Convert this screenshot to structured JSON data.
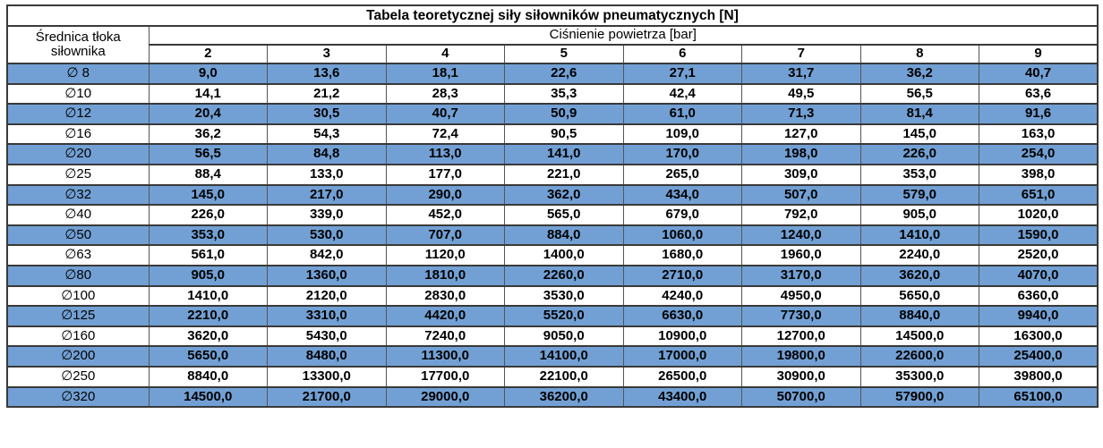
{
  "table": {
    "title": "Tabela teoretycznej siły siłowników pneumatycznych [N]",
    "row_header_lines": [
      "Średnica tłoka",
      "siłownika"
    ],
    "col_group_header": "Ciśnienie powietrza [bar]",
    "pressures": [
      "2",
      "3",
      "4",
      "5",
      "6",
      "7",
      "8",
      "9"
    ],
    "rows": [
      {
        "diameter": "∅ 8",
        "values": [
          "9,0",
          "13,6",
          "18,1",
          "22,6",
          "27,1",
          "31,7",
          "36,2",
          "40,7"
        ]
      },
      {
        "diameter": "∅10",
        "values": [
          "14,1",
          "21,2",
          "28,3",
          "35,3",
          "42,4",
          "49,5",
          "56,5",
          "63,6"
        ]
      },
      {
        "diameter": "∅12",
        "values": [
          "20,4",
          "30,5",
          "40,7",
          "50,9",
          "61,0",
          "71,3",
          "81,4",
          "91,6"
        ]
      },
      {
        "diameter": "∅16",
        "values": [
          "36,2",
          "54,3",
          "72,4",
          "90,5",
          "109,0",
          "127,0",
          "145,0",
          "163,0"
        ]
      },
      {
        "diameter": "∅20",
        "values": [
          "56,5",
          "84,8",
          "113,0",
          "141,0",
          "170,0",
          "198,0",
          "226,0",
          "254,0"
        ]
      },
      {
        "diameter": "∅25",
        "values": [
          "88,4",
          "133,0",
          "177,0",
          "221,0",
          "265,0",
          "309,0",
          "353,0",
          "398,0"
        ]
      },
      {
        "diameter": "∅32",
        "values": [
          "145,0",
          "217,0",
          "290,0",
          "362,0",
          "434,0",
          "507,0",
          "579,0",
          "651,0"
        ]
      },
      {
        "diameter": "∅40",
        "values": [
          "226,0",
          "339,0",
          "452,0",
          "565,0",
          "679,0",
          "792,0",
          "905,0",
          "1020,0"
        ]
      },
      {
        "diameter": "∅50",
        "values": [
          "353,0",
          "530,0",
          "707,0",
          "884,0",
          "1060,0",
          "1240,0",
          "1410,0",
          "1590,0"
        ]
      },
      {
        "diameter": "∅63",
        "values": [
          "561,0",
          "842,0",
          "1120,0",
          "1400,0",
          "1680,0",
          "1960,0",
          "2240,0",
          "2520,0"
        ]
      },
      {
        "diameter": "∅80",
        "values": [
          "905,0",
          "1360,0",
          "1810,0",
          "2260,0",
          "2710,0",
          "3170,0",
          "3620,0",
          "4070,0"
        ]
      },
      {
        "diameter": "∅100",
        "values": [
          "1410,0",
          "2120,0",
          "2830,0",
          "3530,0",
          "4240,0",
          "4950,0",
          "5650,0",
          "6360,0"
        ]
      },
      {
        "diameter": "∅125",
        "values": [
          "2210,0",
          "3310,0",
          "4420,0",
          "5520,0",
          "6630,0",
          "7730,0",
          "8840,0",
          "9940,0"
        ]
      },
      {
        "diameter": "∅160",
        "values": [
          "3620,0",
          "5430,0",
          "7240,0",
          "9050,0",
          "10900,0",
          "12700,0",
          "14500,0",
          "16300,0"
        ]
      },
      {
        "diameter": "∅200",
        "values": [
          "5650,0",
          "8480,0",
          "11300,0",
          "14100,0",
          "17000,0",
          "19800,0",
          "22600,0",
          "25400,0"
        ]
      },
      {
        "diameter": "∅250",
        "values": [
          "8840,0",
          "13300,0",
          "17700,0",
          "22100,0",
          "26500,0",
          "30900,0",
          "35300,0",
          "39800,0"
        ]
      },
      {
        "diameter": "∅320",
        "values": [
          "14500,0",
          "21700,0",
          "29000,0",
          "36200,0",
          "43400,0",
          "50700,0",
          "57900,0",
          "65100,0"
        ]
      }
    ],
    "colors": {
      "row_highlight": "#72a0d4",
      "row_plain": "#ffffff",
      "border_dark": "#393939",
      "text": "#000000"
    }
  }
}
